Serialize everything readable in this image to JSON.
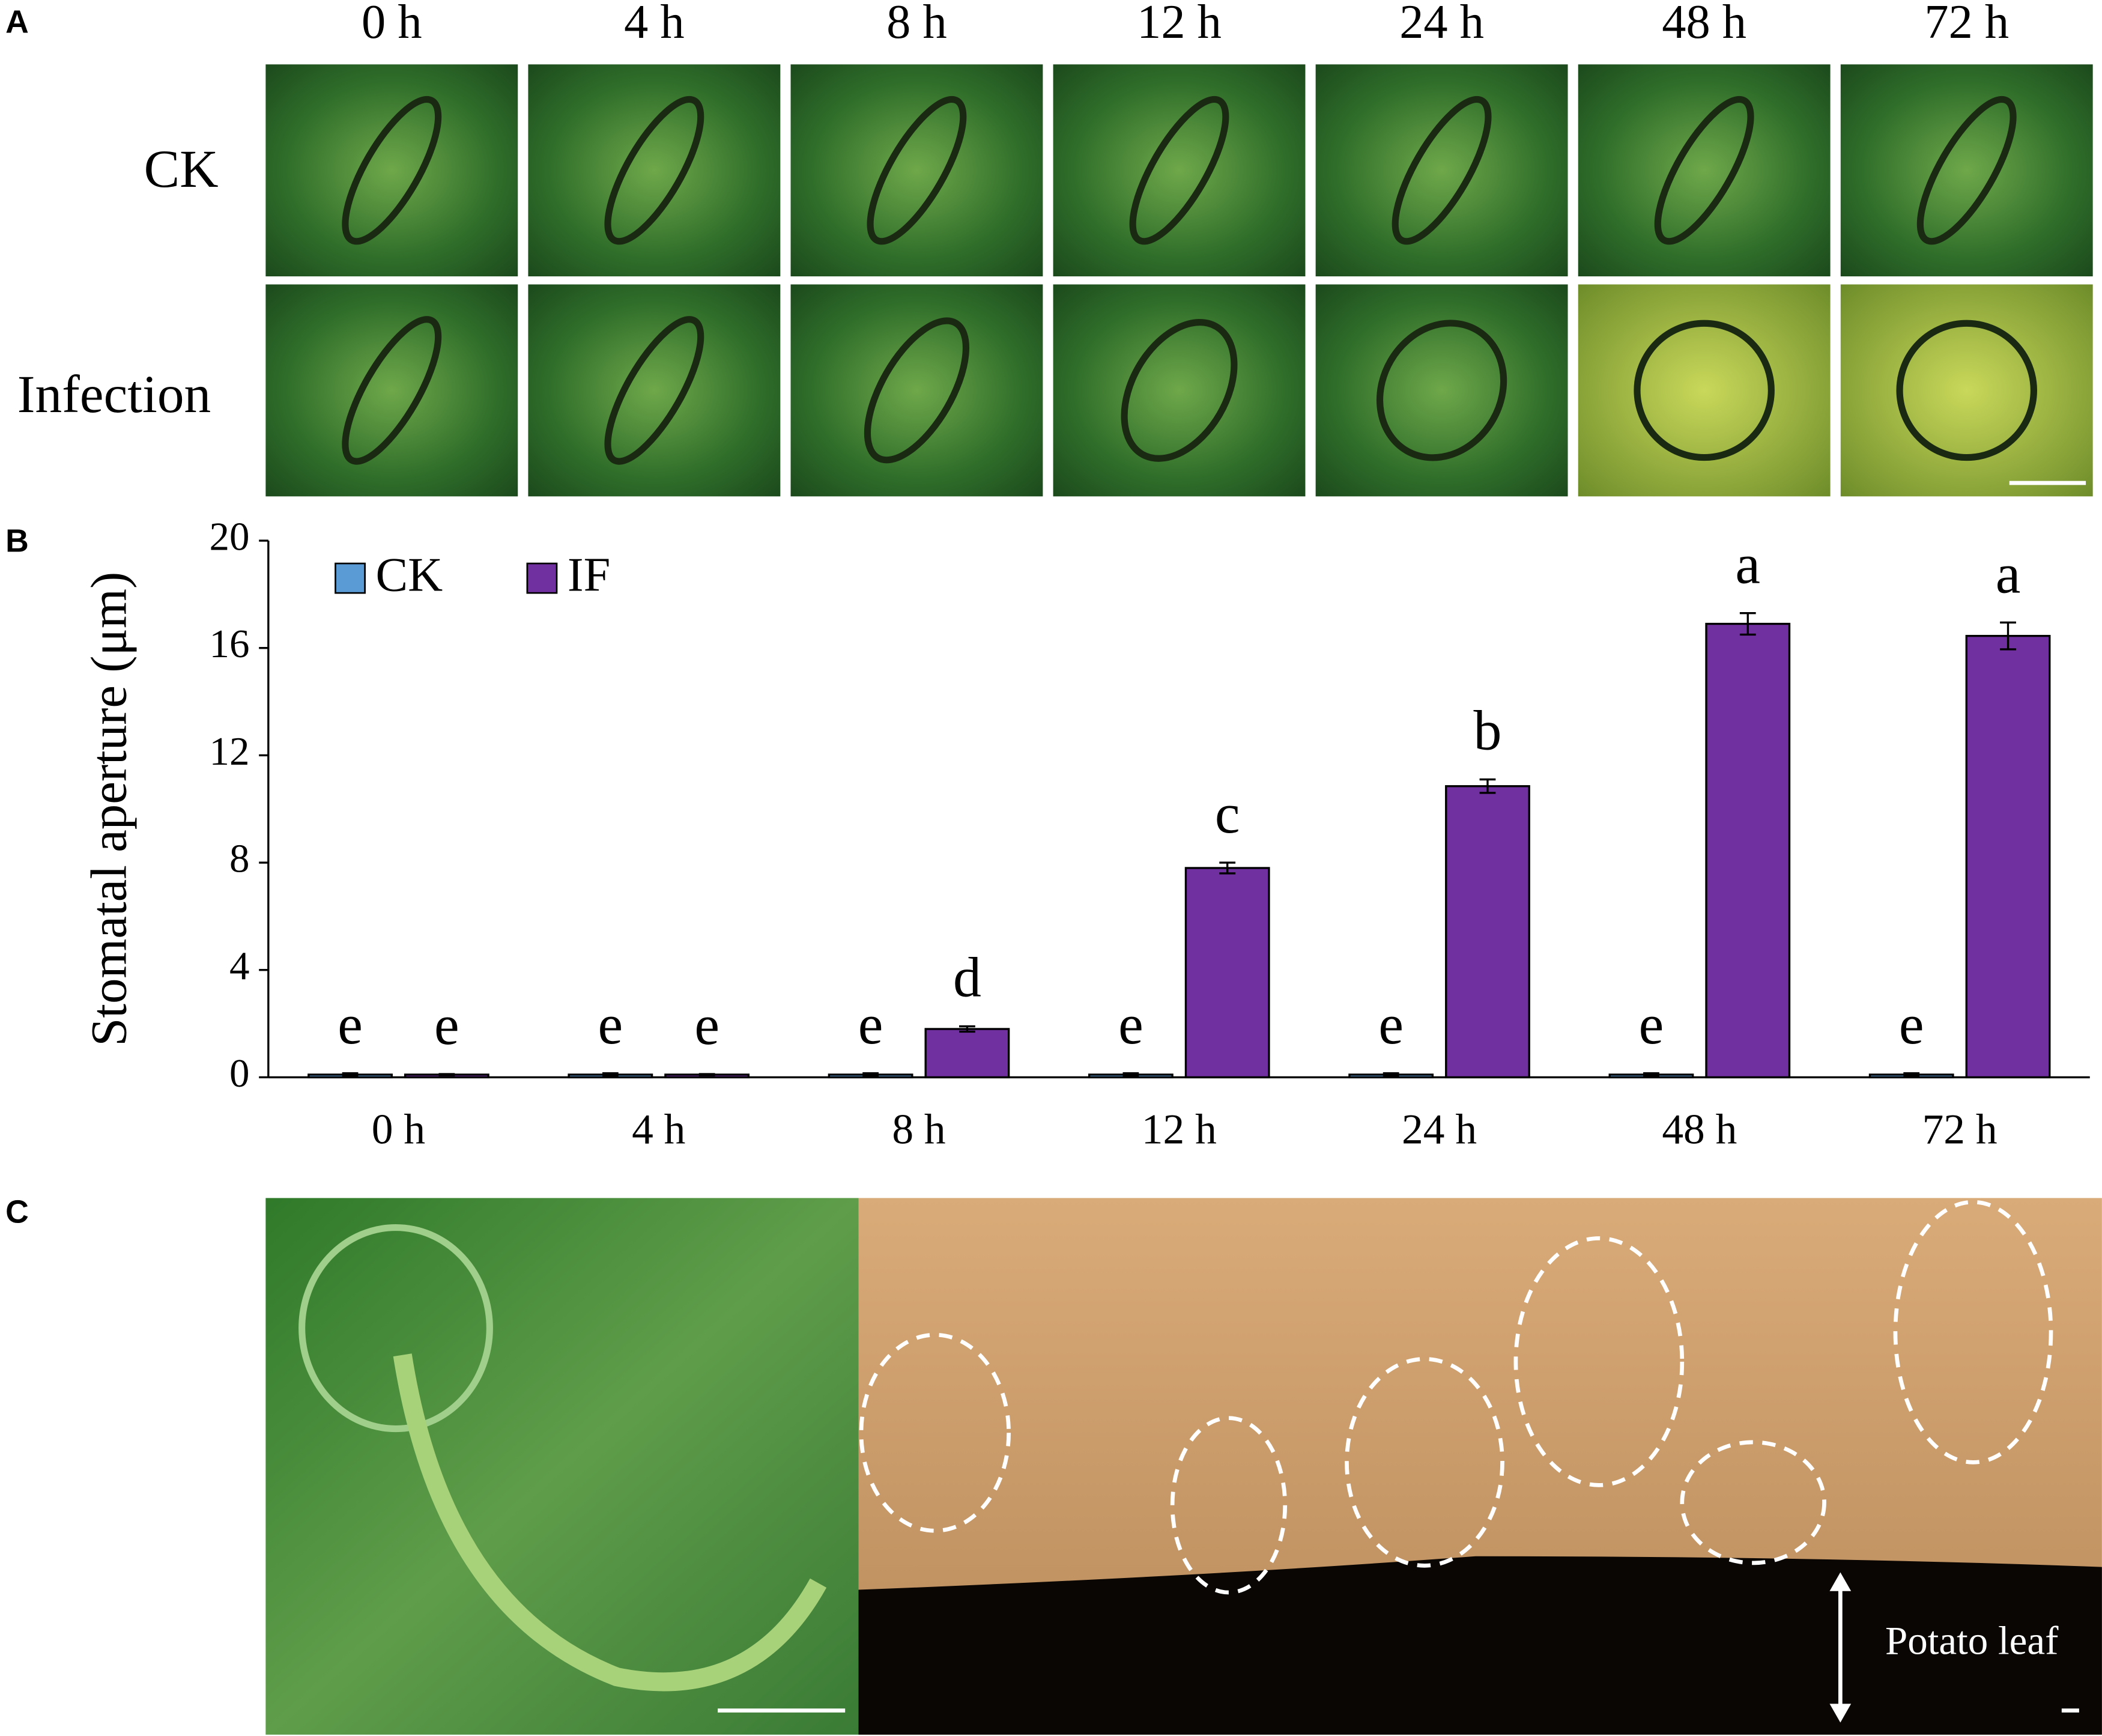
{
  "panel_labels": [
    "A",
    "B",
    "C"
  ],
  "panel_a": {
    "columns": [
      "0 h",
      "4 h",
      "8 h",
      "12 h",
      "24 h",
      "48 h",
      "72 h"
    ],
    "rows": [
      "CK",
      "Infection"
    ]
  },
  "panel_c": {
    "label": "Potato leaf"
  },
  "chart_data": {
    "type": "bar",
    "y_label": "Stomatal aperture (μm)",
    "categories": [
      "0 h",
      "4 h",
      "8 h",
      "12 h",
      "24 h",
      "48 h",
      "72 h"
    ],
    "series": [
      {
        "name": "CK",
        "color": "#5b9bd5",
        "values": [
          0.1,
          0.1,
          0.1,
          0.1,
          0.1,
          0.1,
          0.1
        ],
        "errors": [
          0.05,
          0.05,
          0.05,
          0.05,
          0.05,
          0.05,
          0.05
        ],
        "letters": [
          "e",
          "e",
          "e",
          "e",
          "e",
          "e",
          "e"
        ]
      },
      {
        "name": "IF",
        "color": "#7030a0",
        "values": [
          0.1,
          0.1,
          1.8,
          7.8,
          10.85,
          16.9,
          16.45
        ],
        "errors": [
          0.02,
          0.02,
          0.1,
          0.2,
          0.25,
          0.4,
          0.5
        ],
        "letters": [
          "e",
          "e",
          "d",
          "c",
          "b",
          "a",
          "a"
        ]
      }
    ],
    "ylim": [
      0,
      20
    ],
    "yticks": [
      0,
      4,
      8,
      12,
      16,
      20
    ],
    "legend": "upper left",
    "grid": false
  }
}
